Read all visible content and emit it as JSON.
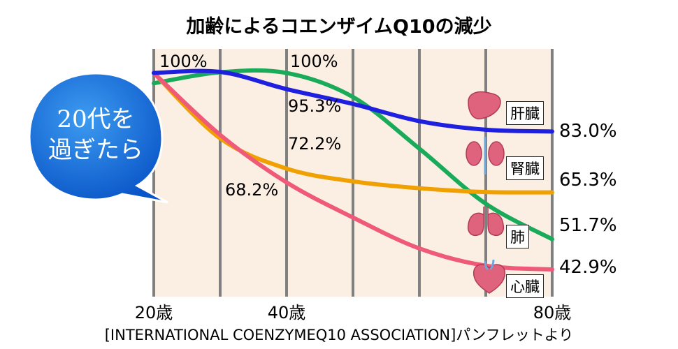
{
  "title": "加齢によるコエンザイムQ10の減少",
  "source": "[INTERNATIONAL COENZYMEQ10 ASSOCIATION]パンフレットより",
  "bubble": {
    "line1": "20代を",
    "line2": "過ぎたら"
  },
  "chart_data": {
    "type": "line",
    "title": "加齢によるコエンザイムQ10の減少",
    "xlim": [
      20,
      80
    ],
    "ylim": [
      35,
      107
    ],
    "grid": true,
    "x_tick_labels": [
      {
        "x": 20,
        "label": "20歳"
      },
      {
        "x": 40,
        "label": "40歳"
      },
      {
        "x": 80,
        "label": "80歳"
      }
    ],
    "series": [
      {
        "name": "肝臓",
        "color": "#1f1fe0",
        "points": [
          [
            20,
            100
          ],
          [
            30,
            100.3
          ],
          [
            40,
            95.3
          ],
          [
            50,
            91
          ],
          [
            60,
            86
          ],
          [
            70,
            83.5
          ],
          [
            80,
            83.0
          ]
        ]
      },
      {
        "name": "肺",
        "color": "#1aab5a",
        "points": [
          [
            20,
            97
          ],
          [
            30,
            100.2
          ],
          [
            40,
            100
          ],
          [
            50,
            93
          ],
          [
            60,
            78
          ],
          [
            70,
            62
          ],
          [
            80,
            51.7
          ]
        ]
      },
      {
        "name": "腎臓",
        "color": "#f0a000",
        "points": [
          [
            20,
            100
          ],
          [
            30,
            81
          ],
          [
            40,
            72.2
          ],
          [
            50,
            68.5
          ],
          [
            60,
            66.5
          ],
          [
            70,
            65.4
          ],
          [
            80,
            65.3
          ]
        ]
      },
      {
        "name": "心臓",
        "color": "#ee5a78",
        "points": [
          [
            20,
            100
          ],
          [
            30,
            82
          ],
          [
            40,
            68.2
          ],
          [
            50,
            58
          ],
          [
            60,
            49
          ],
          [
            70,
            44
          ],
          [
            80,
            42.9
          ]
        ]
      }
    ],
    "data_labels": [
      {
        "series": "肝臓",
        "x": 20,
        "text": "100%"
      },
      {
        "series": "肺",
        "x": 40,
        "text": "100%"
      },
      {
        "series": "肝臓",
        "x": 40,
        "text": "95.3%"
      },
      {
        "series": "腎臓",
        "x": 40,
        "text": "72.2%"
      },
      {
        "series": "心臓",
        "x": 30,
        "text": "68.2%"
      },
      {
        "series": "肝臓",
        "x": 80,
        "text": "83.0%"
      },
      {
        "series": "腎臓",
        "x": 80,
        "text": "65.3%"
      },
      {
        "series": "肺",
        "x": 80,
        "text": "51.7%"
      },
      {
        "series": "心臓",
        "x": 80,
        "text": "42.9%"
      }
    ]
  },
  "organs": [
    {
      "label": "肝臓",
      "icon": "liver-icon",
      "color": "#e0637e"
    },
    {
      "label": "腎臓",
      "icon": "kidney-icon",
      "color": "#e0637e"
    },
    {
      "label": "肺",
      "icon": "lung-icon",
      "color": "#e0637e"
    },
    {
      "label": "心臓",
      "icon": "heart-icon",
      "color": "#e0637e"
    }
  ]
}
